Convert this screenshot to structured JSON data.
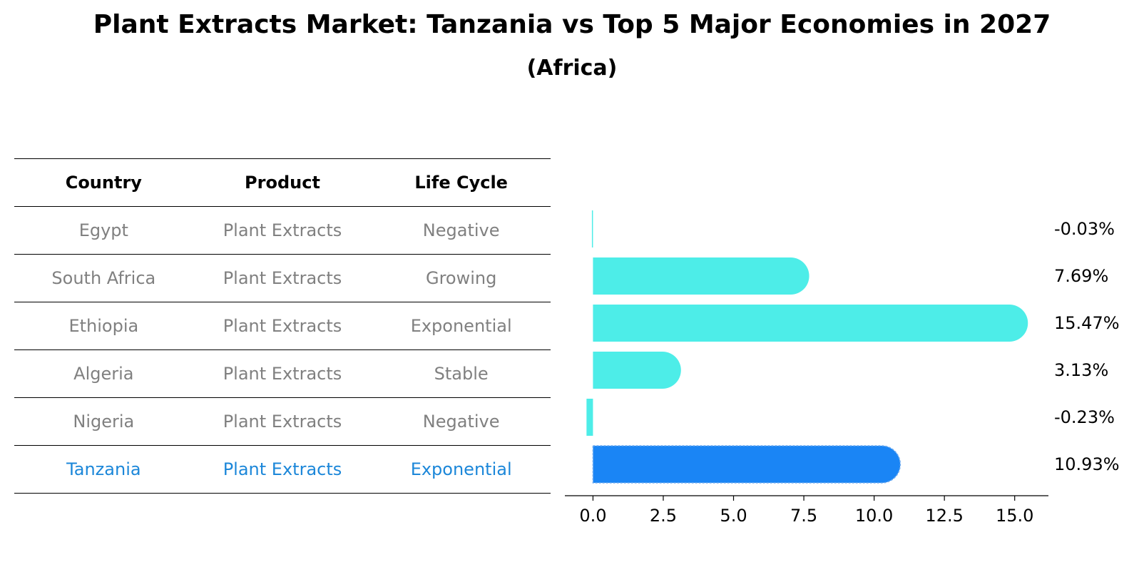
{
  "title": "Plant Extracts Market: Tanzania vs Top 5 Major Economies in 2027",
  "subtitle": "(Africa)",
  "table": {
    "headers": [
      "Country",
      "Product",
      "Life Cycle"
    ],
    "rows": [
      {
        "country": "Egypt",
        "product": "Plant Extracts",
        "life_cycle": "Negative"
      },
      {
        "country": "South Africa",
        "product": "Plant Extracts",
        "life_cycle": "Growing"
      },
      {
        "country": "Ethiopia",
        "product": "Plant Extracts",
        "life_cycle": "Exponential"
      },
      {
        "country": "Algeria",
        "product": "Plant Extracts",
        "life_cycle": "Stable"
      },
      {
        "country": "Nigeria",
        "product": "Plant Extracts",
        "life_cycle": "Negative"
      },
      {
        "country": "Tanzania",
        "product": "Plant Extracts",
        "life_cycle": "Exponential"
      }
    ]
  },
  "colors": {
    "bar": "#4dede8",
    "highlight_bar": "#1a85f5",
    "highlight_text": "#1c87d9",
    "muted_text": "#808080"
  },
  "chart_data": {
    "type": "bar",
    "orientation": "horizontal",
    "categories": [
      "Egypt",
      "South Africa",
      "Ethiopia",
      "Algeria",
      "Nigeria",
      "Tanzania"
    ],
    "values": [
      -0.03,
      7.69,
      15.47,
      3.13,
      -0.23,
      10.93
    ],
    "value_labels": [
      "-0.03%",
      "7.69%",
      "15.47%",
      "3.13%",
      "-0.23%",
      "10.93%"
    ],
    "highlight": "Tanzania",
    "xlim": [
      -1,
      16.2
    ],
    "xticks": [
      0.0,
      2.5,
      5.0,
      7.5,
      10.0,
      12.5,
      15.0
    ],
    "xtick_labels": [
      "0.0",
      "2.5",
      "5.0",
      "7.5",
      "10.0",
      "12.5",
      "15.0"
    ]
  }
}
